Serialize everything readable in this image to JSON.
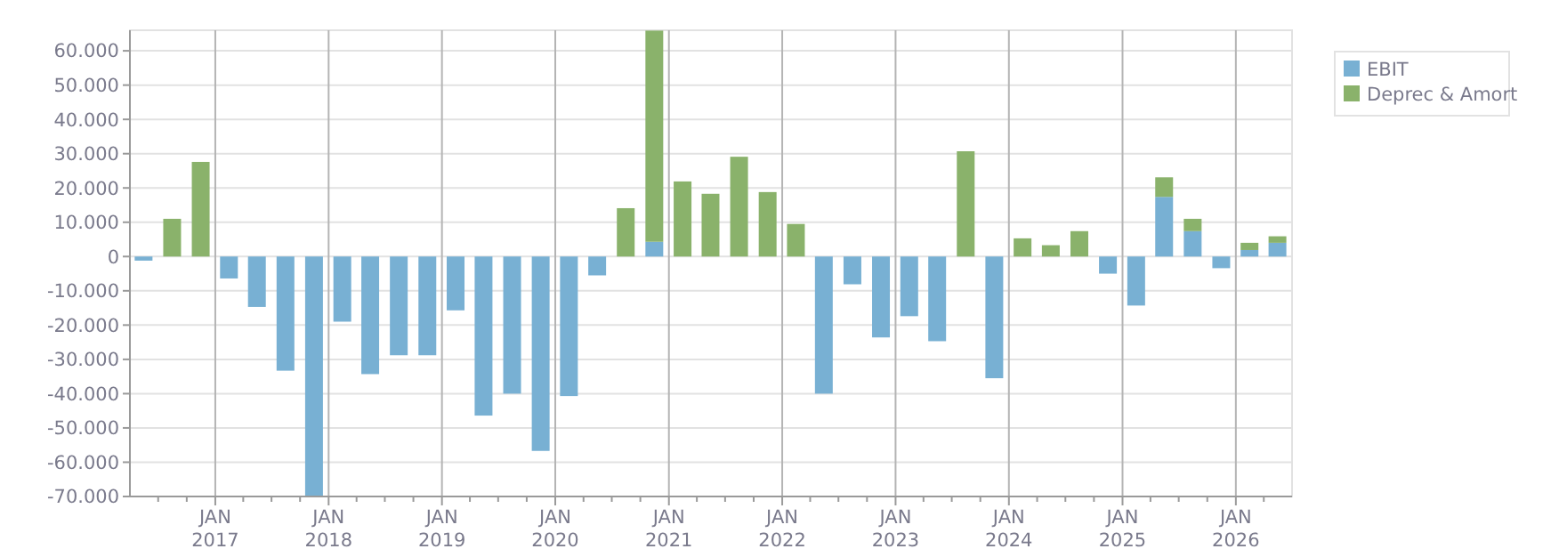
{
  "chart_data": {
    "type": "bar",
    "stacked": true,
    "x": [
      "2016-05-15",
      "2016-08-15",
      "2016-11-15",
      "2017-02-14",
      "2017-05-15",
      "2017-08-15",
      "2017-11-15",
      "2018-02-14",
      "2018-05-15",
      "2018-08-15",
      "2018-11-15",
      "2019-02-14",
      "2019-05-15",
      "2019-08-15",
      "2019-11-15",
      "2020-02-14",
      "2020-05-15",
      "2020-08-15",
      "2020-11-15",
      "2021-02-14",
      "2021-05-15",
      "2021-08-15",
      "2021-11-15",
      "2022-02-14",
      "2022-05-15",
      "2022-08-15",
      "2022-11-15",
      "2023-02-14",
      "2023-05-15",
      "2023-08-15",
      "2023-11-15",
      "2024-02-14",
      "2024-05-15",
      "2024-08-15",
      "2024-11-15",
      "2025-02-14",
      "2025-05-15",
      "2025-08-15",
      "2025-11-15",
      "2026-02-14",
      "2026-05-15"
    ],
    "series": [
      {
        "name": "EBIT",
        "color": "#78b0d3",
        "values": [
          -1200,
          0,
          0,
          -6400,
          -14700,
          -33300,
          -70000,
          -19000,
          -34300,
          -28800,
          -28800,
          -15700,
          -46400,
          -40000,
          -56700,
          -40700,
          -5500,
          0,
          4300,
          0,
          0,
          0,
          0,
          0,
          -40000,
          -8100,
          -23600,
          -17400,
          -24700,
          0,
          -35500,
          0,
          0,
          0,
          -5000,
          -14300,
          17400,
          7400,
          -3400,
          1900,
          4000
        ]
      },
      {
        "name": "Deprec & Amort",
        "color": "#8ab26b",
        "values": [
          0,
          11000,
          27600,
          0,
          0,
          0,
          0,
          0,
          0,
          0,
          0,
          0,
          0,
          0,
          0,
          0,
          0,
          14100,
          61600,
          21900,
          18300,
          29100,
          18800,
          9500,
          0,
          0,
          0,
          0,
          0,
          30700,
          0,
          5300,
          3300,
          7400,
          0,
          0,
          5700,
          3600,
          0,
          2100,
          1900
        ]
      }
    ],
    "xlim": [
      "2016-04-01",
      "2026-07-01"
    ],
    "xticks": [
      {
        "value": "2016-07-01",
        "label": null
      },
      {
        "value": "2016-10-01",
        "label": null
      },
      {
        "value": "2017-01-01",
        "label": "JAN\n2017"
      },
      {
        "value": "2017-04-01",
        "label": null
      },
      {
        "value": "2017-07-01",
        "label": null
      },
      {
        "value": "2017-10-01",
        "label": null
      },
      {
        "value": "2018-01-01",
        "label": "JAN\n2018"
      },
      {
        "value": "2018-04-01",
        "label": null
      },
      {
        "value": "2018-07-01",
        "label": null
      },
      {
        "value": "2018-10-01",
        "label": null
      },
      {
        "value": "2019-01-01",
        "label": "JAN\n2019"
      },
      {
        "value": "2019-04-01",
        "label": null
      },
      {
        "value": "2019-07-01",
        "label": null
      },
      {
        "value": "2019-10-01",
        "label": null
      },
      {
        "value": "2020-01-01",
        "label": "JAN\n2020"
      },
      {
        "value": "2020-04-01",
        "label": null
      },
      {
        "value": "2020-07-01",
        "label": null
      },
      {
        "value": "2020-10-01",
        "label": null
      },
      {
        "value": "2021-01-01",
        "label": "JAN\n2021"
      },
      {
        "value": "2021-04-01",
        "label": null
      },
      {
        "value": "2021-07-01",
        "label": null
      },
      {
        "value": "2021-10-01",
        "label": null
      },
      {
        "value": "2022-01-01",
        "label": "JAN\n2022"
      },
      {
        "value": "2022-04-01",
        "label": null
      },
      {
        "value": "2022-07-01",
        "label": null
      },
      {
        "value": "2022-10-01",
        "label": null
      },
      {
        "value": "2023-01-01",
        "label": "JAN\n2023"
      },
      {
        "value": "2023-04-01",
        "label": null
      },
      {
        "value": "2023-07-01",
        "label": null
      },
      {
        "value": "2023-10-01",
        "label": null
      },
      {
        "value": "2024-01-01",
        "label": "JAN\n2024"
      },
      {
        "value": "2024-04-01",
        "label": null
      },
      {
        "value": "2024-07-01",
        "label": null
      },
      {
        "value": "2024-10-01",
        "label": null
      },
      {
        "value": "2025-01-01",
        "label": "JAN\n2025"
      },
      {
        "value": "2025-04-01",
        "label": null
      },
      {
        "value": "2025-07-01",
        "label": null
      },
      {
        "value": "2025-10-01",
        "label": null
      },
      {
        "value": "2026-01-01",
        "label": "JAN\n2026"
      },
      {
        "value": "2026-04-01",
        "label": null
      }
    ],
    "ylim": [
      -70000,
      66000
    ],
    "yticks": [
      {
        "value": -70000,
        "label": "-70.000"
      },
      {
        "value": -60000,
        "label": "-60.000"
      },
      {
        "value": -50000,
        "label": "-50.000"
      },
      {
        "value": -40000,
        "label": "-40.000"
      },
      {
        "value": -30000,
        "label": "-30.000"
      },
      {
        "value": -20000,
        "label": "-20.000"
      },
      {
        "value": -10000,
        "label": "-10.000"
      },
      0,
      {
        "value": 10000,
        "label": "10.000"
      },
      {
        "value": 20000,
        "label": "20.000"
      },
      {
        "value": 30000,
        "label": "30.000"
      },
      {
        "value": 40000,
        "label": "40.000"
      },
      {
        "value": 50000,
        "label": "50.000"
      },
      {
        "value": 60000,
        "label": "60.000"
      }
    ],
    "grid": true,
    "legend": "top right"
  }
}
